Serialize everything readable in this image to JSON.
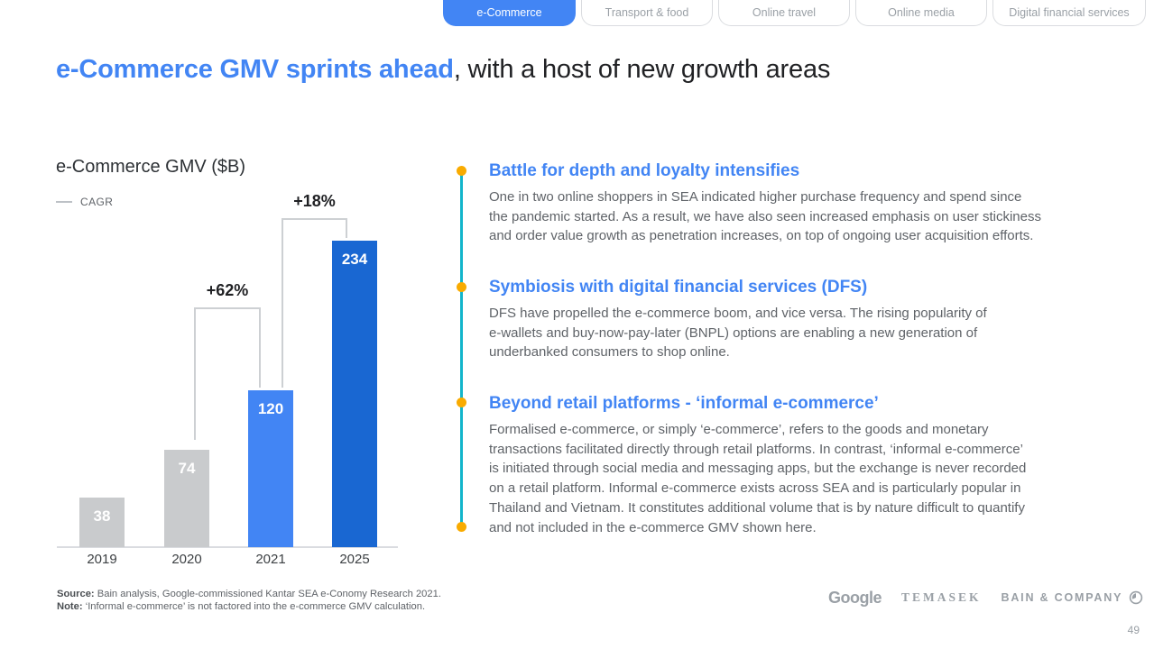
{
  "tabs": [
    {
      "label": "e-Commerce",
      "active": true
    },
    {
      "label": "Transport & food",
      "active": false
    },
    {
      "label": "Online travel",
      "active": false
    },
    {
      "label": "Online media",
      "active": false
    },
    {
      "label": "Digital financial services",
      "active": false
    }
  ],
  "title": {
    "highlight": "e-Commerce GMV sprints ahead",
    "rest": ", with a host of new growth areas"
  },
  "chart_data": {
    "type": "bar",
    "title": "e-Commerce GMV ($B)",
    "legend_label": "CAGR",
    "legend_position": "top-left",
    "categories": [
      "2019",
      "2020",
      "2021",
      "2025"
    ],
    "values": [
      38,
      74,
      120,
      234
    ],
    "bar_colors": [
      "#C9CBCD",
      "#C9CBCD",
      "#4285F4",
      "#1967D2"
    ],
    "annotations": [
      {
        "label": "+62%",
        "from": "2020",
        "to": "2021"
      },
      {
        "label": "+18%",
        "from": "2021",
        "to": "2025"
      }
    ],
    "ylim": [
      0,
      253
    ],
    "grid": false,
    "xlabel": "",
    "ylabel": ""
  },
  "bullets": [
    {
      "heading": "Battle for depth and loyalty intensifies",
      "body": "One in two online shoppers in SEA indicated higher purchase frequency and spend since\nthe pandemic started. As a result, we have also seen increased emphasis on user stickiness\nand order value growth as penetration increases, on top of ongoing user acquisition efforts."
    },
    {
      "heading": "Symbiosis with digital financial services (DFS)",
      "body": "DFS have propelled the e-commerce boom, and vice versa. The rising popularity of\ne-wallets and buy-now-pay-later (BNPL) options are enabling a new generation of\nunderbanked consumers to shop online."
    },
    {
      "heading": "Beyond retail platforms - ‘informal e-commerce’",
      "body": "Formalised e-commerce, or simply ‘e-commerce’, refers to the goods and monetary\ntransactions facilitated directly through retail platforms. In contrast, ‘informal e-commerce’\nis initiated through social media and messaging apps, but the exchange is never recorded\non a retail platform. Informal e-commerce exists across SEA and is particularly popular in\nThailand and Vietnam. It constitutes additional volume that is by nature difficult to quantify\nand not included in the e-commerce GMV shown here."
    }
  ],
  "footer": {
    "source_label": "Source:",
    "source_text": " Bain analysis, Google-commissioned Kantar SEA e-Conomy Research 2021.",
    "note_label": "Note:",
    "note_text": " ‘Informal e-commerce’ is not factored into the e-commerce GMV calculation.",
    "page_number": "49"
  },
  "logos": {
    "google": "Google",
    "temasek": "TEMASEK",
    "bain": "BAIN & COMPANY"
  },
  "colors": {
    "accent_blue": "#4285F4",
    "dark_blue": "#1967D2",
    "gray_bar": "#C9CBCD",
    "teal": "#12B5CB",
    "orange": "#F9AB00",
    "text_dark": "#202124",
    "text_gray": "#5F6368",
    "border_gray": "#DADCE0",
    "bracket_gray": "#CDD0D3",
    "tab_inactive_text": "#9AA0A6",
    "logo_gray": "#9AA0A6"
  }
}
